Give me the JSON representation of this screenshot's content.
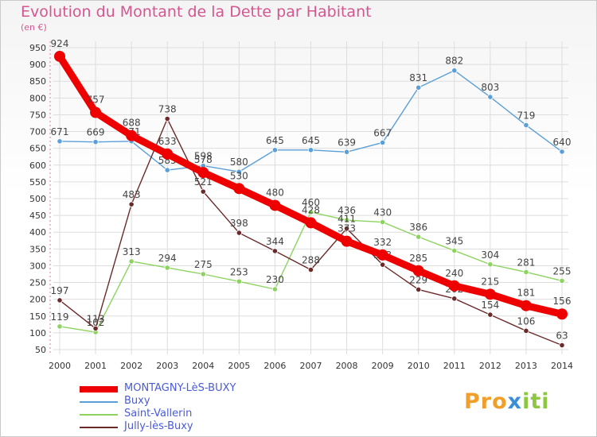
{
  "header": {
    "title": "Evolution du Montant de la Dette par Habitant",
    "subtitle": "(en €)"
  },
  "colors": {
    "title": "#d4568f",
    "axis_text": "#333333",
    "grid": "#dcdcdc",
    "legend_text": "#4a5bd6"
  },
  "chart_data": {
    "type": "line",
    "title": "Evolution du Montant de la Dette par Habitant",
    "ylabel": "(en €)",
    "xlabel": "",
    "ylim": [
      50,
      950
    ],
    "yticks": [
      50,
      100,
      150,
      200,
      250,
      300,
      350,
      400,
      450,
      500,
      550,
      600,
      650,
      700,
      750,
      800,
      850,
      900,
      950
    ],
    "x": [
      "2000",
      "2001",
      "2002",
      "2003",
      "2004",
      "2005",
      "2006",
      "2007",
      "2008",
      "2009",
      "2010",
      "2011",
      "2012",
      "2013",
      "2014"
    ],
    "grid": true,
    "legend_position": "bottom-left",
    "series": [
      {
        "name": "Buxy",
        "color": "#5b9fd8",
        "values": [
          671,
          669,
          671,
          585,
          598,
          580,
          645,
          645,
          639,
          667,
          831,
          882,
          803,
          719,
          640
        ]
      },
      {
        "name": "Saint-Vallerin",
        "color": "#8dd35f",
        "values": [
          119,
          102,
          313,
          294,
          275,
          253,
          230,
          460,
          436,
          430,
          386,
          345,
          304,
          281,
          255
        ]
      },
      {
        "name": "Jully-lès-Buxy",
        "color": "#6b2a2a",
        "values": [
          197,
          113,
          483,
          738,
          521,
          398,
          344,
          288,
          411,
          303,
          229,
          202,
          154,
          106,
          63
        ]
      },
      {
        "name": "MONTAGNY-LèS-BUXY",
        "color": "#ee0000",
        "values": [
          924,
          757,
          688,
          633,
          578,
          530,
          480,
          428,
          373,
          332,
          285,
          240,
          215,
          181,
          156
        ]
      }
    ]
  },
  "legend": [
    {
      "label": "MONTAGNY-LèS-BUXY",
      "color": "#ee0000",
      "thick": true
    },
    {
      "label": "Buxy",
      "color": "#5b9fd8",
      "thick": false
    },
    {
      "label": "Saint-Vallerin",
      "color": "#8dd35f",
      "thick": false
    },
    {
      "label": "Jully-lès-Buxy",
      "color": "#6b2a2a",
      "thick": false
    }
  ],
  "logo": {
    "text": "Proxiti"
  }
}
